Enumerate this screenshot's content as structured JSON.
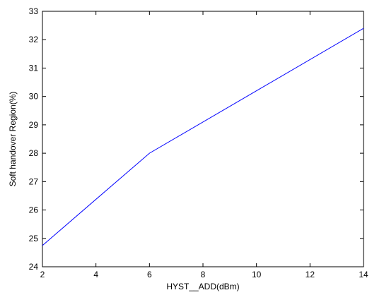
{
  "chart_data": {
    "type": "line",
    "title": "",
    "xlabel": "HYST__ADD(dBm)",
    "ylabel": "Soft handover Region(%)",
    "xlim": [
      2,
      14
    ],
    "ylim": [
      24,
      33
    ],
    "xticks": [
      2,
      4,
      6,
      8,
      10,
      12,
      14
    ],
    "yticks": [
      24,
      25,
      26,
      27,
      28,
      29,
      30,
      31,
      32,
      33
    ],
    "grid": false,
    "series": [
      {
        "color": "#0000ff",
        "x": [
          2,
          6,
          14
        ],
        "y": [
          24.75,
          28.0,
          32.4
        ]
      }
    ]
  }
}
